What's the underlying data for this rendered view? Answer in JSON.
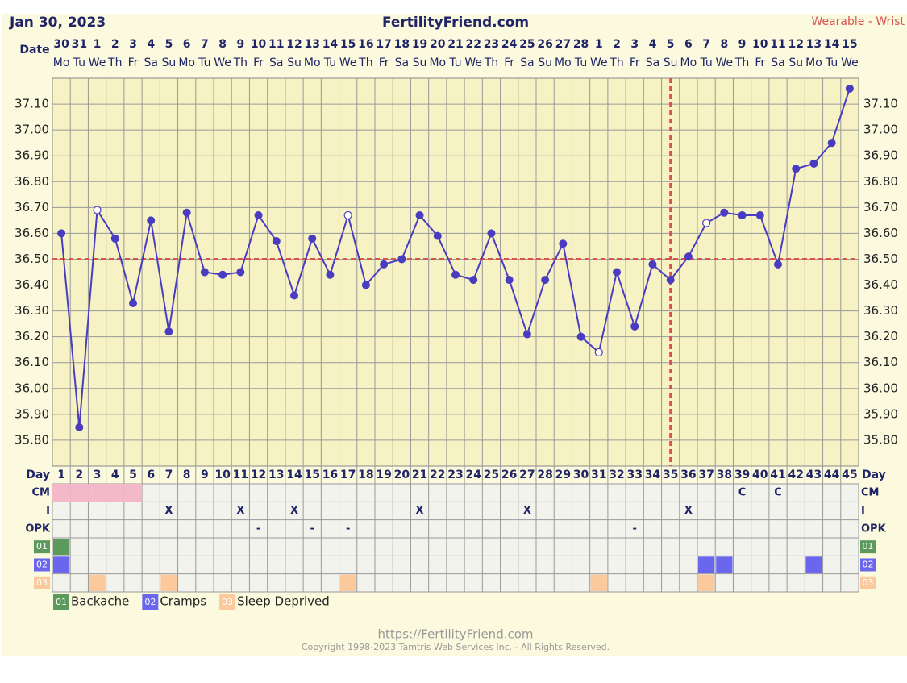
{
  "chart_data": {
    "type": "line",
    "title": "Jan 30, 2023",
    "site": "FertilityFriend.com",
    "source": "Wearable - Wrist",
    "x_label": "Date",
    "dates": [
      "30",
      "31",
      "1",
      "2",
      "3",
      "4",
      "5",
      "6",
      "7",
      "8",
      "9",
      "10",
      "11",
      "12",
      "13",
      "14",
      "15",
      "16",
      "17",
      "18",
      "19",
      "20",
      "21",
      "22",
      "23",
      "24",
      "25",
      "26",
      "27",
      "28",
      "1",
      "2",
      "3",
      "4",
      "5",
      "6",
      "7",
      "8",
      "9",
      "10",
      "11",
      "12",
      "13",
      "14",
      "15"
    ],
    "weekdays": [
      "Mo",
      "Tu",
      "We",
      "Th",
      "Fr",
      "Sa",
      "Su",
      "Mo",
      "Tu",
      "We",
      "Th",
      "Fr",
      "Sa",
      "Su",
      "Mo",
      "Tu",
      "We",
      "Th",
      "Fr",
      "Sa",
      "Su",
      "Mo",
      "Tu",
      "We",
      "Th",
      "Fr",
      "Sa",
      "Su",
      "Mo",
      "Tu",
      "We",
      "Th",
      "Fr",
      "Sa",
      "Su",
      "Mo",
      "Tu",
      "We",
      "Th",
      "Fr",
      "Sa",
      "Su",
      "Mo",
      "Tu",
      "We"
    ],
    "day_label": "Day",
    "days": [
      1,
      2,
      3,
      4,
      5,
      6,
      7,
      8,
      9,
      10,
      11,
      12,
      13,
      14,
      15,
      16,
      17,
      18,
      19,
      20,
      21,
      22,
      23,
      24,
      25,
      26,
      27,
      28,
      29,
      30,
      31,
      32,
      33,
      34,
      35,
      36,
      37,
      38,
      39,
      40,
      41,
      42,
      43,
      44,
      45
    ],
    "series": [
      {
        "color": "#4a3cc0",
        "values": [
          36.6,
          35.85,
          36.69,
          36.58,
          36.33,
          36.65,
          36.22,
          36.68,
          36.45,
          36.44,
          36.45,
          36.67,
          36.57,
          36.36,
          36.58,
          36.44,
          36.67,
          36.4,
          36.48,
          36.5,
          36.67,
          36.59,
          36.44,
          36.42,
          36.6,
          36.42,
          36.21,
          36.42,
          36.56,
          36.2,
          36.14,
          36.45,
          36.24,
          36.48,
          36.42,
          36.51,
          36.64,
          36.68,
          36.67,
          36.67,
          36.48,
          36.85,
          36.87,
          36.95,
          37.16
        ],
        "markers": [
          "filled",
          "filled",
          "open",
          "filled",
          "filled",
          "filled",
          "filled",
          "filled",
          "filled",
          "filled",
          "filled",
          "filled",
          "filled",
          "filled",
          "filled",
          "filled",
          "open",
          "filled",
          "filled",
          "filled",
          "filled",
          "filled",
          "filled",
          "filled",
          "filled",
          "filled",
          "filled",
          "filled",
          "filled",
          "filled",
          "open",
          "filled",
          "filled",
          "filled",
          "filled",
          "filled",
          "open",
          "filled",
          "filled",
          "filled",
          "filled",
          "filled",
          "filled",
          "filled",
          "filled"
        ]
      }
    ],
    "ylim": [
      35.7,
      37.2
    ],
    "yticks": [
      {
        "value": 35.8,
        "label": "35.80"
      },
      {
        "value": 35.9,
        "label": "35.90"
      },
      {
        "value": 36.0,
        "label": "36.00"
      },
      {
        "value": 36.1,
        "label": "36.10"
      },
      {
        "value": 36.2,
        "label": "36.20"
      },
      {
        "value": 36.3,
        "label": "36.30"
      },
      {
        "value": 36.4,
        "label": "36.40"
      },
      {
        "value": 36.5,
        "label": "36.50"
      },
      {
        "value": 36.6,
        "label": "36.60"
      },
      {
        "value": 36.7,
        "label": "36.70"
      },
      {
        "value": 36.8,
        "label": "36.80"
      },
      {
        "value": 36.9,
        "label": "36.90"
      },
      {
        "value": 37.0,
        "label": "37.00"
      },
      {
        "value": 37.1,
        "label": "37.10"
      }
    ],
    "grid": true,
    "coverline": {
      "value": 36.5,
      "color": "#d9534f"
    },
    "ovulation_day": 35,
    "table": {
      "rows": [
        {
          "label": "CM",
          "shaded": [
            1,
            2,
            3,
            4,
            5
          ],
          "shade_color": "#f4b8cb",
          "entries": [
            {
              "day": 39,
              "text": "C"
            },
            {
              "day": 41,
              "text": "C"
            }
          ]
        },
        {
          "label": "I",
          "entries": [
            {
              "day": 7,
              "text": "X"
            },
            {
              "day": 11,
              "text": "X"
            },
            {
              "day": 14,
              "text": "X"
            },
            {
              "day": 21,
              "text": "X"
            },
            {
              "day": 27,
              "text": "X"
            },
            {
              "day": 36,
              "text": "X"
            }
          ]
        },
        {
          "label": "OPK",
          "entries": [
            {
              "day": 12,
              "text": "-"
            },
            {
              "day": 15,
              "text": "-"
            },
            {
              "day": 17,
              "text": "-"
            },
            {
              "day": 33,
              "text": "-"
            }
          ]
        }
      ],
      "symptoms": [
        {
          "code": "01",
          "name": "Backache",
          "color": "#5b9a5b",
          "days": [
            1
          ]
        },
        {
          "code": "02",
          "name": "Cramps",
          "color": "#6a66ee",
          "days": [
            1,
            37,
            38,
            43
          ]
        },
        {
          "code": "03",
          "name": "Sleep Deprived",
          "color": "#fbc99b",
          "days": [
            3,
            7,
            17,
            31,
            37
          ]
        }
      ]
    },
    "footer_url": "https://FertilityFriend.com",
    "copyright": "Copyright 1998-2023 Tamtris Web Services Inc. - All Rights Reserved."
  }
}
